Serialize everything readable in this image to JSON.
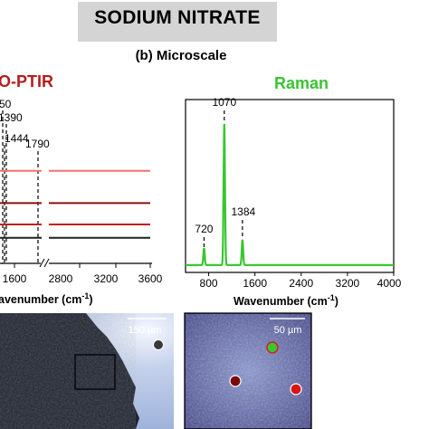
{
  "figure": {
    "title": "SODIUM NITRATE",
    "subtitle": "(b) Microscale"
  },
  "colors": {
    "optir": "#b21e1e",
    "raman": "#3ac531",
    "title_bg": "#d4d4d4"
  },
  "chart_data": [
    {
      "type": "line",
      "title": "O-PTIR",
      "xlabel": "avenumber (cm",
      "xlabel_sup": "-1",
      "xlabel_close": ")",
      "x_ticks": [
        "1600",
        "2800",
        "3200",
        "3600"
      ],
      "peak_labels": [
        "50",
        "1390",
        "1444",
        "1790"
      ],
      "series": [
        {
          "color": "#f07272",
          "values": [
            [
              1340,
              0.86
            ],
            [
              1360,
              0.76
            ],
            [
              1390,
              0.72
            ],
            [
              1420,
              0.69
            ],
            [
              1500,
              0.67
            ],
            [
              1600,
              0.67
            ],
            [
              1700,
              0.67
            ],
            [
              1790,
              0.67
            ],
            [
              2650,
              0.67
            ],
            [
              3600,
              0.67
            ]
          ]
        },
        {
          "color": "#8c1010",
          "values": [
            [
              1340,
              0.56
            ],
            [
              1360,
              0.46
            ],
            [
              1390,
              0.44
            ],
            [
              1444,
              0.43
            ],
            [
              1600,
              0.43
            ],
            [
              1790,
              0.43
            ],
            [
              2650,
              0.43
            ],
            [
              3600,
              0.43
            ]
          ]
        },
        {
          "color": "#c51e1e",
          "values": [
            [
              1340,
              0.34
            ],
            [
              1360,
              0.3
            ],
            [
              1390,
              0.28
            ],
            [
              1444,
              0.27
            ],
            [
              1600,
              0.27
            ],
            [
              1790,
              0.27
            ],
            [
              2650,
              0.27
            ],
            [
              3600,
              0.27
            ]
          ]
        },
        {
          "color": "#222222",
          "values": [
            [
              1340,
              0.19
            ],
            [
              1360,
              0.18
            ],
            [
              1390,
              0.18
            ],
            [
              1444,
              0.17
            ],
            [
              1600,
              0.17
            ],
            [
              1790,
              0.17
            ],
            [
              2650,
              0.17
            ],
            [
              3600,
              0.17
            ]
          ]
        }
      ]
    },
    {
      "type": "line",
      "title": "Raman",
      "xlabel": "Wavenumber (cm",
      "xlabel_sup": "-1",
      "xlabel_close": ")",
      "xlim": [
        400,
        4000
      ],
      "x_ticks": [
        800,
        1600,
        2400,
        3200,
        4000
      ],
      "peak_labels": [
        720,
        1070,
        1384
      ],
      "series": [
        {
          "name": "",
          "color": "#3ac531",
          "peaks": [
            [
              720,
              0.12
            ],
            [
              1070,
              1.0
            ],
            [
              1384,
              0.18
            ]
          ],
          "baseline": 0.02
        }
      ]
    }
  ],
  "images": {
    "left": {
      "scale_label": "150 µm"
    },
    "right": {
      "scale_label": "50 µm"
    }
  }
}
